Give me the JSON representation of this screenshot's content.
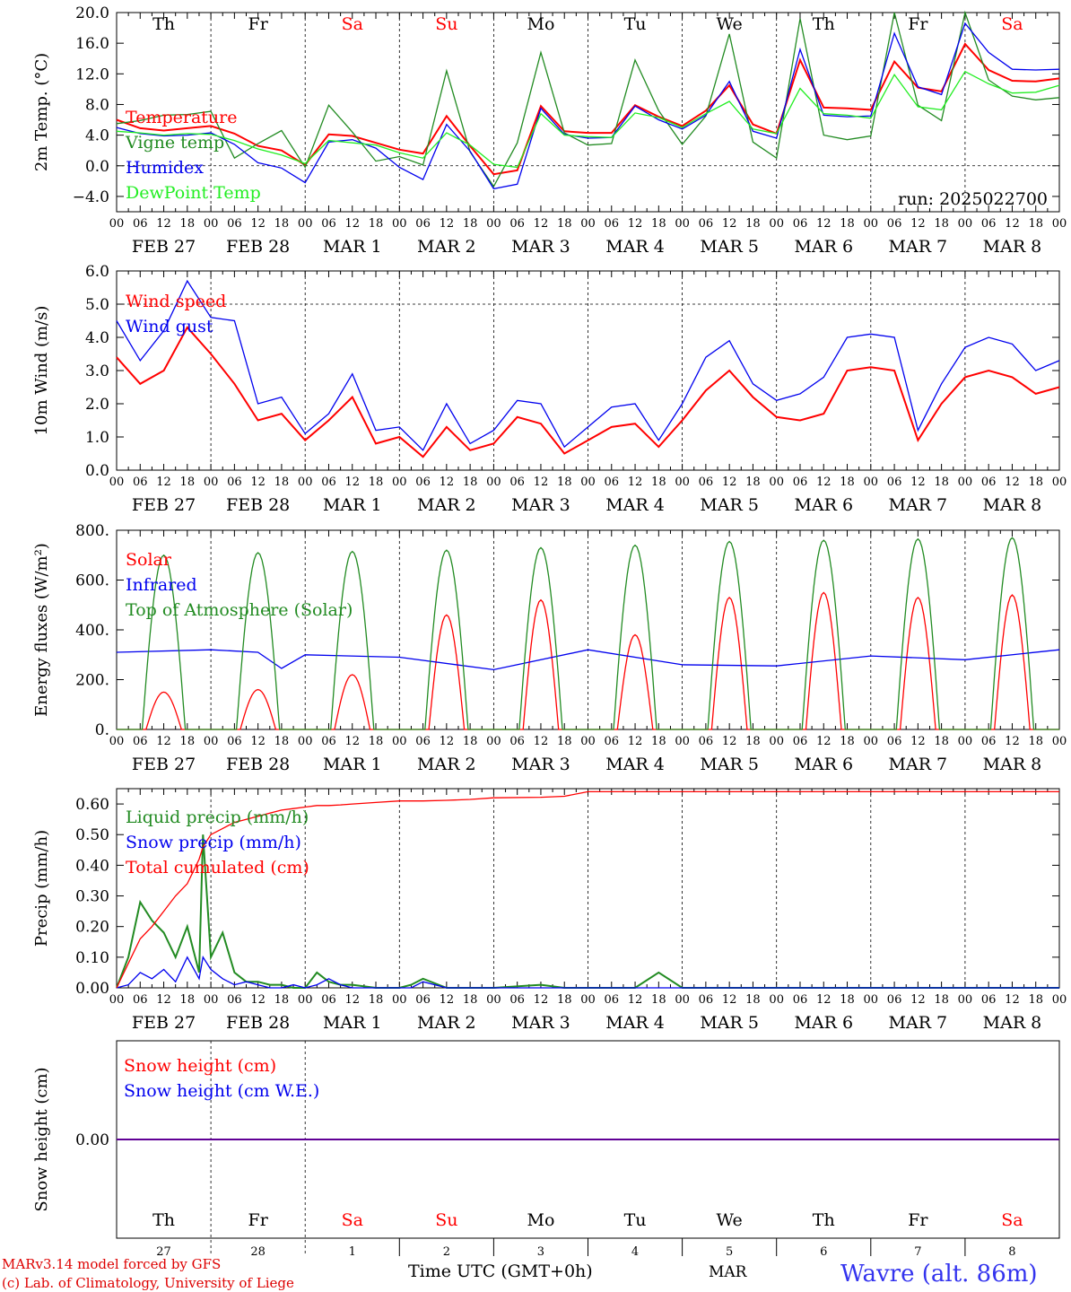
{
  "meta": {
    "model_credit": "MARv3.14 model forced by GFS",
    "lab_credit": "(c) Lab. of Climatology, University of Liege",
    "time_axis_label": "Time UTC (GMT+0h)",
    "month_label": "MAR",
    "station": "Wavre (alt. 86m)",
    "run": "run: 2025022700"
  },
  "days": {
    "weekday": [
      "Th",
      "Fr",
      "Sa",
      "Su",
      "Mo",
      "Tu",
      "We",
      "Th",
      "Fr",
      "Sa"
    ],
    "weekend": [
      false,
      false,
      true,
      true,
      false,
      false,
      false,
      false,
      false,
      true
    ],
    "date_labels": [
      "FEB 27",
      "FEB 28",
      "MAR  1",
      "MAR  2",
      "MAR  3",
      "MAR  4",
      "MAR  5",
      "MAR  6",
      "MAR  7",
      "MAR  8"
    ],
    "day_numbers": [
      "27",
      "28",
      "1",
      "2",
      "3",
      "4",
      "5",
      "6",
      "7",
      "8"
    ],
    "hour_ticks": [
      "00",
      "06",
      "12",
      "18"
    ],
    "end_tick": "00"
  },
  "colors": {
    "red": "#ff0000",
    "green": "#228b22",
    "blue": "#0000ee",
    "lightgreen": "#22ee22",
    "station": "#3333ee"
  },
  "chart_data": [
    {
      "type": "line",
      "ylabel": "2m Temp. (°C)",
      "ylim": [
        -6,
        20
      ],
      "yticks": [
        "20.0",
        "16.0",
        "12.0",
        "8.0",
        "4.0",
        "0.0",
        "−4.0"
      ],
      "ytick_values": [
        20,
        16,
        12,
        8,
        4,
        0,
        -4
      ],
      "hline": 0,
      "x_hours_from_feb27_00": [
        0,
        6,
        12,
        18,
        24,
        30,
        36,
        42,
        48,
        54,
        60,
        66,
        72,
        78,
        84,
        90,
        96,
        102,
        108,
        114,
        120,
        126,
        132,
        138,
        144,
        150,
        156,
        162,
        168,
        174,
        180,
        186,
        192,
        198,
        204,
        210,
        216,
        222,
        228,
        234,
        240
      ],
      "series": [
        {
          "name": "Temperature",
          "color": "#ff0000",
          "values": [
            6.0,
            4.9,
            4.6,
            4.9,
            5.2,
            4.2,
            2.6,
            2.0,
            0.1,
            4.1,
            3.9,
            3.0,
            2.1,
            1.6,
            6.5,
            2.6,
            -1.1,
            -0.6,
            7.8,
            4.5,
            4.3,
            4.3,
            7.9,
            6.4,
            5.2,
            7.2,
            10.5,
            5.4,
            4.2,
            13.8,
            7.6,
            7.5,
            7.3,
            13.6,
            10.2,
            9.7,
            15.9,
            12.5,
            11.1,
            11.0,
            11.4
          ]
        },
        {
          "name": "Vigne temp",
          "color": "#228b22",
          "values": [
            5.5,
            5.9,
            6.6,
            6.7,
            7.1,
            1.0,
            2.9,
            4.6,
            -0.2,
            7.9,
            4.4,
            0.6,
            1.2,
            0.1,
            12.4,
            1.8,
            -2.7,
            3.0,
            14.8,
            4.3,
            2.7,
            2.9,
            13.8,
            7.2,
            2.8,
            6.5,
            17.2,
            3.1,
            1.0,
            19.2,
            4.0,
            3.4,
            3.9,
            21.2,
            7.9,
            5.9,
            21.4,
            11.2,
            9.1,
            8.6,
            8.9
          ]
        },
        {
          "name": "Humidex",
          "color": "#0000ee",
          "values": [
            5.0,
            4.2,
            3.9,
            4.0,
            4.3,
            2.8,
            0.4,
            -0.3,
            -2.2,
            3.1,
            3.4,
            2.3,
            -0.2,
            -1.8,
            5.4,
            1.9,
            -3.0,
            -2.4,
            7.5,
            4.1,
            3.6,
            3.7,
            7.8,
            6.0,
            4.8,
            6.6,
            11.0,
            4.5,
            3.6,
            15.2,
            6.6,
            6.4,
            6.5,
            17.3,
            10.3,
            9.3,
            18.6,
            14.8,
            12.6,
            12.5,
            12.6
          ]
        },
        {
          "name": "DewPoint Temp",
          "color": "#22ee22",
          "values": [
            4.5,
            4.3,
            4.0,
            4.2,
            4.1,
            3.3,
            2.2,
            1.4,
            0.3,
            3.3,
            3.0,
            2.7,
            1.7,
            1.0,
            4.3,
            2.7,
            0.2,
            -0.2,
            6.8,
            4.0,
            3.8,
            3.7,
            6.9,
            6.3,
            5.0,
            6.8,
            8.4,
            4.8,
            4.2,
            10.1,
            6.8,
            6.6,
            6.2,
            11.9,
            7.7,
            7.3,
            12.3,
            10.7,
            9.5,
            9.6,
            10.5
          ]
        }
      ]
    },
    {
      "type": "line",
      "ylabel": "10m Wind (m/s)",
      "ylim": [
        0,
        6
      ],
      "yticks": [
        "6.0",
        "5.0",
        "4.0",
        "3.0",
        "2.0",
        "1.0",
        "0.0"
      ],
      "ytick_values": [
        6,
        5,
        4,
        3,
        2,
        1,
        0
      ],
      "hline": 5,
      "x_hours_from_feb27_00": [
        0,
        6,
        12,
        18,
        24,
        30,
        36,
        42,
        48,
        54,
        60,
        66,
        72,
        78,
        84,
        90,
        96,
        102,
        108,
        114,
        120,
        126,
        132,
        138,
        144,
        150,
        156,
        162,
        168,
        174,
        180,
        186,
        192,
        198,
        204,
        210,
        216,
        222,
        228,
        234,
        240
      ],
      "series": [
        {
          "name": "Wind speed",
          "color": "#ff0000",
          "values": [
            3.4,
            2.6,
            3.0,
            4.3,
            3.5,
            2.6,
            1.5,
            1.7,
            0.9,
            1.5,
            2.2,
            0.8,
            1.0,
            0.4,
            1.3,
            0.6,
            0.8,
            1.6,
            1.4,
            0.5,
            0.9,
            1.3,
            1.4,
            0.7,
            1.5,
            2.4,
            3.0,
            2.2,
            1.6,
            1.5,
            1.7,
            3.0,
            3.1,
            3.0,
            0.9,
            2.0,
            2.8,
            3.0,
            2.8,
            2.3,
            2.5
          ]
        },
        {
          "name": "Wind gust",
          "color": "#0000ee",
          "values": [
            4.5,
            3.3,
            4.2,
            5.7,
            4.6,
            4.5,
            2.0,
            2.2,
            1.1,
            1.7,
            2.9,
            1.2,
            1.3,
            0.6,
            2.0,
            0.8,
            1.2,
            2.1,
            2.0,
            0.7,
            1.3,
            1.9,
            2.0,
            0.9,
            2.0,
            3.4,
            3.9,
            2.6,
            2.1,
            2.3,
            2.8,
            4.0,
            4.1,
            4.0,
            1.2,
            2.6,
            3.7,
            4.0,
            3.8,
            3.0,
            3.3
          ]
        }
      ]
    },
    {
      "type": "line",
      "ylabel": "Energy fluxes (W/m²)",
      "ylim": [
        0,
        800
      ],
      "yticks": [
        "800.",
        "600.",
        "400.",
        "200.",
        "0."
      ],
      "ytick_values": [
        800,
        600,
        400,
        200,
        0
      ],
      "series_kind": "diurnal",
      "series": [
        {
          "name": "Solar",
          "color": "#ff0000",
          "daily_peak": [
            150,
            160,
            220,
            460,
            520,
            380,
            530,
            550,
            530,
            540
          ]
        },
        {
          "name": "Infrared",
          "color": "#0000ee",
          "x_hours_from_feb27_00": [
            0,
            24,
            36,
            42,
            48,
            72,
            96,
            120,
            144,
            168,
            192,
            216,
            240
          ],
          "values": [
            310,
            320,
            310,
            245,
            300,
            290,
            240,
            320,
            260,
            255,
            295,
            280,
            320
          ]
        },
        {
          "name": "Top of Atmosphere (Solar)",
          "color": "#228b22",
          "daily_peak": [
            700,
            710,
            715,
            720,
            730,
            740,
            755,
            760,
            765,
            770
          ]
        }
      ]
    },
    {
      "type": "line",
      "ylabel": "Precip (mm/h)",
      "ylim": [
        0,
        0.65
      ],
      "yticks": [
        "0.60",
        "0.50",
        "0.40",
        "0.30",
        "0.20",
        "0.10",
        "0.00"
      ],
      "ytick_values": [
        0.6,
        0.5,
        0.4,
        0.3,
        0.2,
        0.1,
        0.0
      ],
      "x_hours_from_feb27_00": [
        0,
        3,
        6,
        9,
        12,
        15,
        18,
        21,
        22,
        24,
        27,
        30,
        33,
        36,
        39,
        42,
        45,
        48,
        51,
        54,
        57,
        60,
        66,
        72,
        75,
        78,
        84,
        90,
        96,
        108,
        114,
        120,
        132,
        138,
        144,
        168,
        192,
        216,
        240
      ],
      "series": [
        {
          "name": "Liquid precip (mm/h)",
          "color": "#228b22",
          "values": [
            0.0,
            0.1,
            0.28,
            0.22,
            0.18,
            0.1,
            0.2,
            0.05,
            0.5,
            0.1,
            0.18,
            0.05,
            0.02,
            0.02,
            0.01,
            0.01,
            0.0,
            0.0,
            0.05,
            0.02,
            0.01,
            0.01,
            0.0,
            0.0,
            0.01,
            0.03,
            0.0,
            0.0,
            0.0,
            0.01,
            0.0,
            0.0,
            0.0,
            0.05,
            0.0,
            0.0,
            0.0,
            0.0,
            0.0
          ]
        },
        {
          "name": "Snow precip (mm/h)",
          "color": "#0000ee",
          "values": [
            0.0,
            0.01,
            0.05,
            0.03,
            0.06,
            0.02,
            0.1,
            0.03,
            0.1,
            0.06,
            0.03,
            0.01,
            0.02,
            0.01,
            0.0,
            0.0,
            0.01,
            0.0,
            0.01,
            0.03,
            0.01,
            0.0,
            0.0,
            0.0,
            0.0,
            0.02,
            0.0,
            0.0,
            0.0,
            0.0,
            0.0,
            0.0,
            0.0,
            0.0,
            0.0,
            0.0,
            0.0,
            0.0,
            0.0
          ]
        },
        {
          "name": "Total cumulated (cm)",
          "color": "#ff0000",
          "values": [
            0.0,
            0.08,
            0.16,
            0.2,
            0.25,
            0.3,
            0.34,
            0.42,
            0.46,
            0.5,
            0.52,
            0.54,
            0.55,
            0.56,
            0.57,
            0.58,
            0.585,
            0.59,
            0.595,
            0.595,
            0.597,
            0.6,
            0.605,
            0.61,
            0.61,
            0.61,
            0.612,
            0.615,
            0.62,
            0.622,
            0.625,
            0.64,
            0.64,
            0.64,
            0.64,
            0.64,
            0.64,
            0.64,
            0.64
          ]
        }
      ]
    },
    {
      "type": "line",
      "ylabel": "Snow height (cm)",
      "ylim": [
        -1,
        1
      ],
      "yticks": [
        "0.00"
      ],
      "ytick_values": [
        0
      ],
      "x_hours_from_feb27_00": [
        0,
        240
      ],
      "series": [
        {
          "name": "Snow height (cm)",
          "color": "#ff0000",
          "values": [
            0,
            0
          ]
        },
        {
          "name": "Snow height (cm W.E.)",
          "color": "#0000ee",
          "values": [
            0,
            0
          ]
        }
      ]
    }
  ]
}
